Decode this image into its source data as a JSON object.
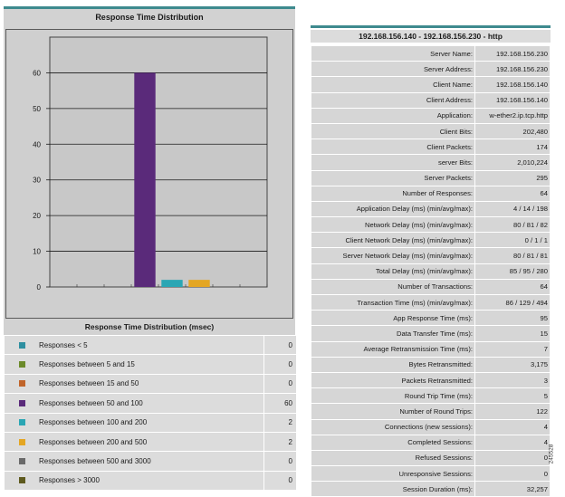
{
  "chart": {
    "title": "Response Time Distribution"
  },
  "chart_data": {
    "type": "bar",
    "yticks": [
      0,
      10,
      20,
      30,
      40,
      50,
      60
    ],
    "ylim": [
      0,
      70
    ],
    "categories": [
      "Responses < 5",
      "Responses between 5 and 15",
      "Responses between 15 and 50",
      "Responses between 50 and 100",
      "Responses between 100 and 200",
      "Responses between 200 and 500",
      "Responses between 500 and 3000",
      "Responses > 3000"
    ],
    "values": [
      0,
      0,
      0,
      60,
      2,
      2,
      0,
      0
    ],
    "colors": [
      "#2e8fa0",
      "#6b8a2a",
      "#c0642a",
      "#5a2a7a",
      "#2aa6b4",
      "#e4a623",
      "#6a6a6a",
      "#5e5a1e"
    ],
    "grid": true,
    "legend": "below"
  },
  "legend": {
    "title": "Response Time Distribution (msec)",
    "rows": [
      {
        "label": "Responses < 5",
        "value": "0",
        "color": "#2e8fa0"
      },
      {
        "label": "Responses between 5 and 15",
        "value": "0",
        "color": "#6b8a2a"
      },
      {
        "label": "Responses between 15 and 50",
        "value": "0",
        "color": "#c0642a"
      },
      {
        "label": "Responses between 50 and 100",
        "value": "60",
        "color": "#5a2a7a"
      },
      {
        "label": "Responses between 100 and 200",
        "value": "2",
        "color": "#2aa6b4"
      },
      {
        "label": "Responses between 200 and 500",
        "value": "2",
        "color": "#e4a623"
      },
      {
        "label": "Responses between 500 and 3000",
        "value": "0",
        "color": "#6a6a6a"
      },
      {
        "label": "Responses >  3000",
        "value": "0",
        "color": "#5e5a1e"
      }
    ]
  },
  "stats": {
    "header": "192.168.156.140 - 192.168.156.230 - http",
    "rows": [
      {
        "key": "Server Name:",
        "value": "192.168.156.230"
      },
      {
        "key": "Server Address:",
        "value": "192.168.156.230"
      },
      {
        "key": "Client Name:",
        "value": "192.168.156.140"
      },
      {
        "key": "Client Address:",
        "value": "192.168.156.140"
      },
      {
        "key": "Application:",
        "value": "w-ether2.ip.tcp.http"
      },
      {
        "key": "Client Bits:",
        "value": "202,480"
      },
      {
        "key": "Client Packets:",
        "value": "174"
      },
      {
        "key": "server Bits:",
        "value": "2,010,224"
      },
      {
        "key": "Server Packets:",
        "value": "295"
      },
      {
        "key": "Number of Responses:",
        "value": "64"
      },
      {
        "key": "Application Delay (ms) (min/avg/max):",
        "value": "4 / 14 / 198"
      },
      {
        "key": "Network Delay (ms) (min/avg/max):",
        "value": "80 / 81 / 82"
      },
      {
        "key": "Client Network Delay (ms) (min/avg/max):",
        "value": "0 / 1 / 1"
      },
      {
        "key": "Server Network Delay (ms) (min/avg/max):",
        "value": "80 / 81 / 81"
      },
      {
        "key": "Total Delay (ms) (min/avg/max):",
        "value": "85 / 95 / 280"
      },
      {
        "key": "Number of Transactions:",
        "value": "64"
      },
      {
        "key": "Transaction Time (ms) (min/avg/max):",
        "value": "86 / 129 / 494"
      },
      {
        "key": "App Response Time (ms):",
        "value": "95"
      },
      {
        "key": "Data Transfer Time (ms):",
        "value": "15"
      },
      {
        "key": "Average Retransmission Time (ms):",
        "value": "7"
      },
      {
        "key": "Bytes Retransmitted:",
        "value": "3,175"
      },
      {
        "key": "Packets Retransmitted:",
        "value": "3"
      },
      {
        "key": "Round Trip Time (ms):",
        "value": "5"
      },
      {
        "key": "Number of Round Trips:",
        "value": "122"
      },
      {
        "key": "Connections (new sessions):",
        "value": "4"
      },
      {
        "key": "Completed Sessions:",
        "value": "4"
      },
      {
        "key": "Refused Sessions:",
        "value": "0"
      },
      {
        "key": "Unresponsive Sessions:",
        "value": "0"
      },
      {
        "key": "Session Duration (ms):",
        "value": "32,257"
      }
    ]
  },
  "figure_id": "245528"
}
